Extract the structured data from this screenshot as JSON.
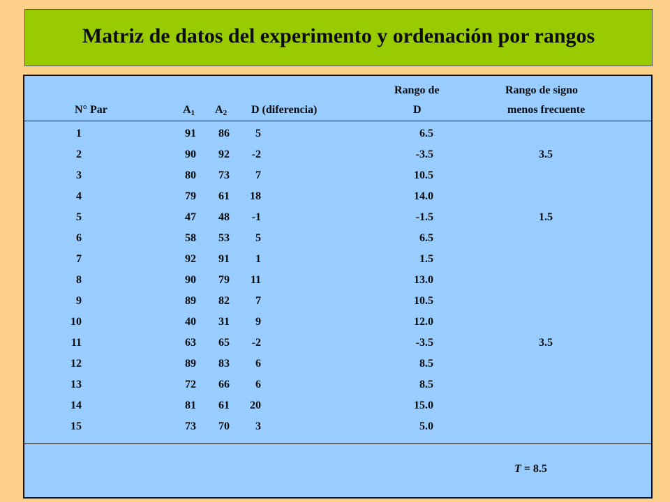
{
  "title": "Matriz de datos del experimento y ordenación por rangos",
  "headers": {
    "par": "N° Par",
    "a1_base": "A",
    "a1_sub": "1",
    "a2_base": "A",
    "a2_sub": "2",
    "d": "D (diferencia)",
    "rango_line1": "Rango de",
    "rango_line2": "D",
    "signo_line1": "Rango de signo",
    "signo_line2": "menos frecuente"
  },
  "rows": [
    {
      "par": "1",
      "a1": "91",
      "a2": "86",
      "d": "5",
      "rango": "6.5",
      "signo": ""
    },
    {
      "par": "2",
      "a1": "90",
      "a2": "92",
      "d": "-2",
      "rango": "-3.5",
      "signo": "3.5"
    },
    {
      "par": "3",
      "a1": "80",
      "a2": "73",
      "d": "7",
      "rango": "10.5",
      "signo": ""
    },
    {
      "par": "4",
      "a1": "79",
      "a2": "61",
      "d": "18",
      "rango": "14.0",
      "signo": ""
    },
    {
      "par": "5",
      "a1": "47",
      "a2": "48",
      "d": "-1",
      "rango": "-1.5",
      "signo": "1.5"
    },
    {
      "par": "6",
      "a1": "58",
      "a2": "53",
      "d": "5",
      "rango": "6.5",
      "signo": ""
    },
    {
      "par": "7",
      "a1": "92",
      "a2": "91",
      "d": "1",
      "rango": "1.5",
      "signo": ""
    },
    {
      "par": "8",
      "a1": "90",
      "a2": "79",
      "d": "11",
      "rango": "13.0",
      "signo": ""
    },
    {
      "par": "9",
      "a1": "89",
      "a2": "82",
      "d": "7",
      "rango": "10.5",
      "signo": ""
    },
    {
      "par": "10",
      "a1": "40",
      "a2": "31",
      "d": "9",
      "rango": "12.0",
      "signo": ""
    },
    {
      "par": "11",
      "a1": "63",
      "a2": "65",
      "d": "-2",
      "rango": "-3.5",
      "signo": "3.5"
    },
    {
      "par": "12",
      "a1": "89",
      "a2": "83",
      "d": "6",
      "rango": "8.5",
      "signo": ""
    },
    {
      "par": "13",
      "a1": "72",
      "a2": "66",
      "d": "6",
      "rango": "8.5",
      "signo": ""
    },
    {
      "par": "14",
      "a1": "81",
      "a2": "61",
      "d": "20",
      "rango": "15.0",
      "signo": ""
    },
    {
      "par": "15",
      "a1": "73",
      "a2": "70",
      "d": "3",
      "rango": "5.0",
      "signo": ""
    }
  ],
  "footer": {
    "t_symbol": "T",
    "t_rest": " = 8.5"
  }
}
